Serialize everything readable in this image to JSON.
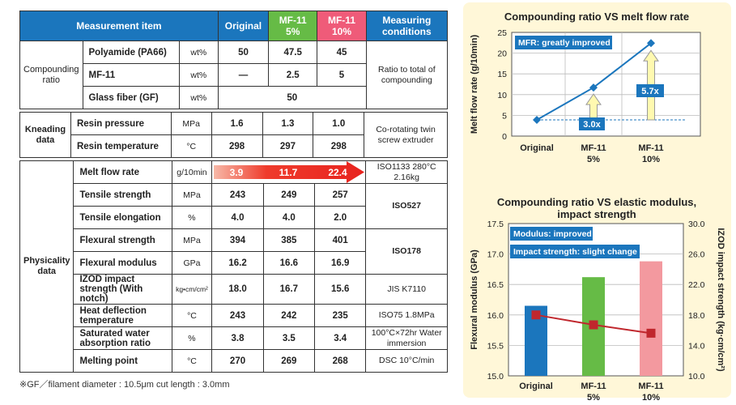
{
  "table": {
    "headers": {
      "item": "Measurement item",
      "original": "Original",
      "mf5": "MF-11 5%",
      "mf10": "MF-11 10%",
      "conditions": "Measuring conditions"
    },
    "groups": {
      "compounding": "Compounding ratio",
      "kneading": "Kneading data",
      "physicality": "Physicality data"
    },
    "rows": [
      {
        "name": "Polyamide (PA66)",
        "unit": "wt%",
        "v1": "50",
        "v2": "47.5",
        "v3": "45"
      },
      {
        "name": "MF-11",
        "unit": "wt%",
        "v1": "—",
        "v2": "2.5",
        "v3": "5"
      },
      {
        "name": "Glass fiber (GF)",
        "unit": "wt%",
        "v1": "50"
      },
      {
        "name": "Resin pressure",
        "unit": "MPa",
        "v1": "1.6",
        "v2": "1.3",
        "v3": "1.0"
      },
      {
        "name": "Resin temperature",
        "unit": "°C",
        "v1": "298",
        "v2": "297",
        "v3": "298"
      },
      {
        "name": "Melt flow rate",
        "unit": "g/10min",
        "v1": "3.9",
        "v2": "11.7",
        "v3": "22.4"
      },
      {
        "name": "Tensile strength",
        "unit": "MPa",
        "v1": "243",
        "v2": "249",
        "v3": "257"
      },
      {
        "name": "Tensile elongation",
        "unit": "%",
        "v1": "4.0",
        "v2": "4.0",
        "v3": "2.0"
      },
      {
        "name": "Flexural strength",
        "unit": "MPa",
        "v1": "394",
        "v2": "385",
        "v3": "401"
      },
      {
        "name": "Flexural modulus",
        "unit": "GPa",
        "v1": "16.2",
        "v2": "16.6",
        "v3": "16.9"
      },
      {
        "name": "IZOD impact strength (With notch)",
        "unit": "kg•cm/cm²",
        "v1": "18.0",
        "v2": "16.7",
        "v3": "15.6"
      },
      {
        "name": "Heat deflection temperature",
        "unit": "°C",
        "v1": "243",
        "v2": "242",
        "v3": "235"
      },
      {
        "name": "Saturated water absorption ratio",
        "unit": "%",
        "v1": "3.8",
        "v2": "3.5",
        "v3": "3.4"
      },
      {
        "name": "Melting point",
        "unit": "°C",
        "v1": "270",
        "v2": "269",
        "v3": "268"
      }
    ],
    "conditions": {
      "ratio": "Ratio to total of compounding",
      "kneading": "Co-rotating twin screw extruder",
      "mfr": "ISO1133 280°C 2.16kg",
      "iso527": "ISO527",
      "iso178": "ISO178",
      "jis": "JIS K7110",
      "iso75": "ISO75 1.8MPa",
      "water": "100°C×72hr Water immersion",
      "dsc": "DSC 10°C/min"
    },
    "arrow_color": "#e8231e"
  },
  "footnote": "※GF／filament diameter : 10.5μm   cut length : 3.0mm",
  "chart_data": [
    {
      "type": "line",
      "title": "Compounding ratio VS melt flow rate",
      "categories": [
        "Original",
        "MF-11 5%",
        "MF-11 10%"
      ],
      "series": [
        {
          "values": [
            3.9,
            11.7,
            22.4
          ]
        }
      ],
      "ylabel": "Melt flow rate (g/10min)",
      "ylim": [
        0,
        25
      ],
      "yticks": [
        0,
        5,
        10,
        15,
        20,
        25
      ],
      "annotations": {
        "badge": "MFR: greatly improved",
        "ratio1": "3.0x",
        "ratio2": "5.7x"
      },
      "grid": true,
      "colors": {
        "line": "#1b76bd",
        "arrow": "#fff9b0"
      }
    },
    {
      "type": "bar",
      "title": "Compounding ratio VS elastic modulus, impact strength",
      "categories": [
        "Original",
        "MF-11 5%",
        "MF-11 10%"
      ],
      "series": [
        {
          "values": [
            16.15,
            16.62,
            16.88
          ],
          "colors": [
            "#1b76bd",
            "#66bb46",
            "#f3999f"
          ],
          "axis": "left"
        },
        {
          "values": [
            18.0,
            16.7,
            15.6
          ],
          "type": "line",
          "color": "#c0272d",
          "axis": "right"
        }
      ],
      "ylabel": "Flexural modulus (GPa)",
      "y2label": "IZOD impact strength (kg·cm/cm²)",
      "ylim": [
        15.0,
        17.5
      ],
      "y2lim": [
        10.0,
        30.0
      ],
      "yticks": [
        15.0,
        15.5,
        16.0,
        16.5,
        17.0,
        17.5
      ],
      "y2ticks": [
        10.0,
        14.0,
        18.0,
        22.0,
        26.0,
        30.0
      ],
      "annotations": {
        "badge1": "Modulus: improved",
        "badge2": "Impact strength: slight change"
      },
      "grid": true
    }
  ]
}
